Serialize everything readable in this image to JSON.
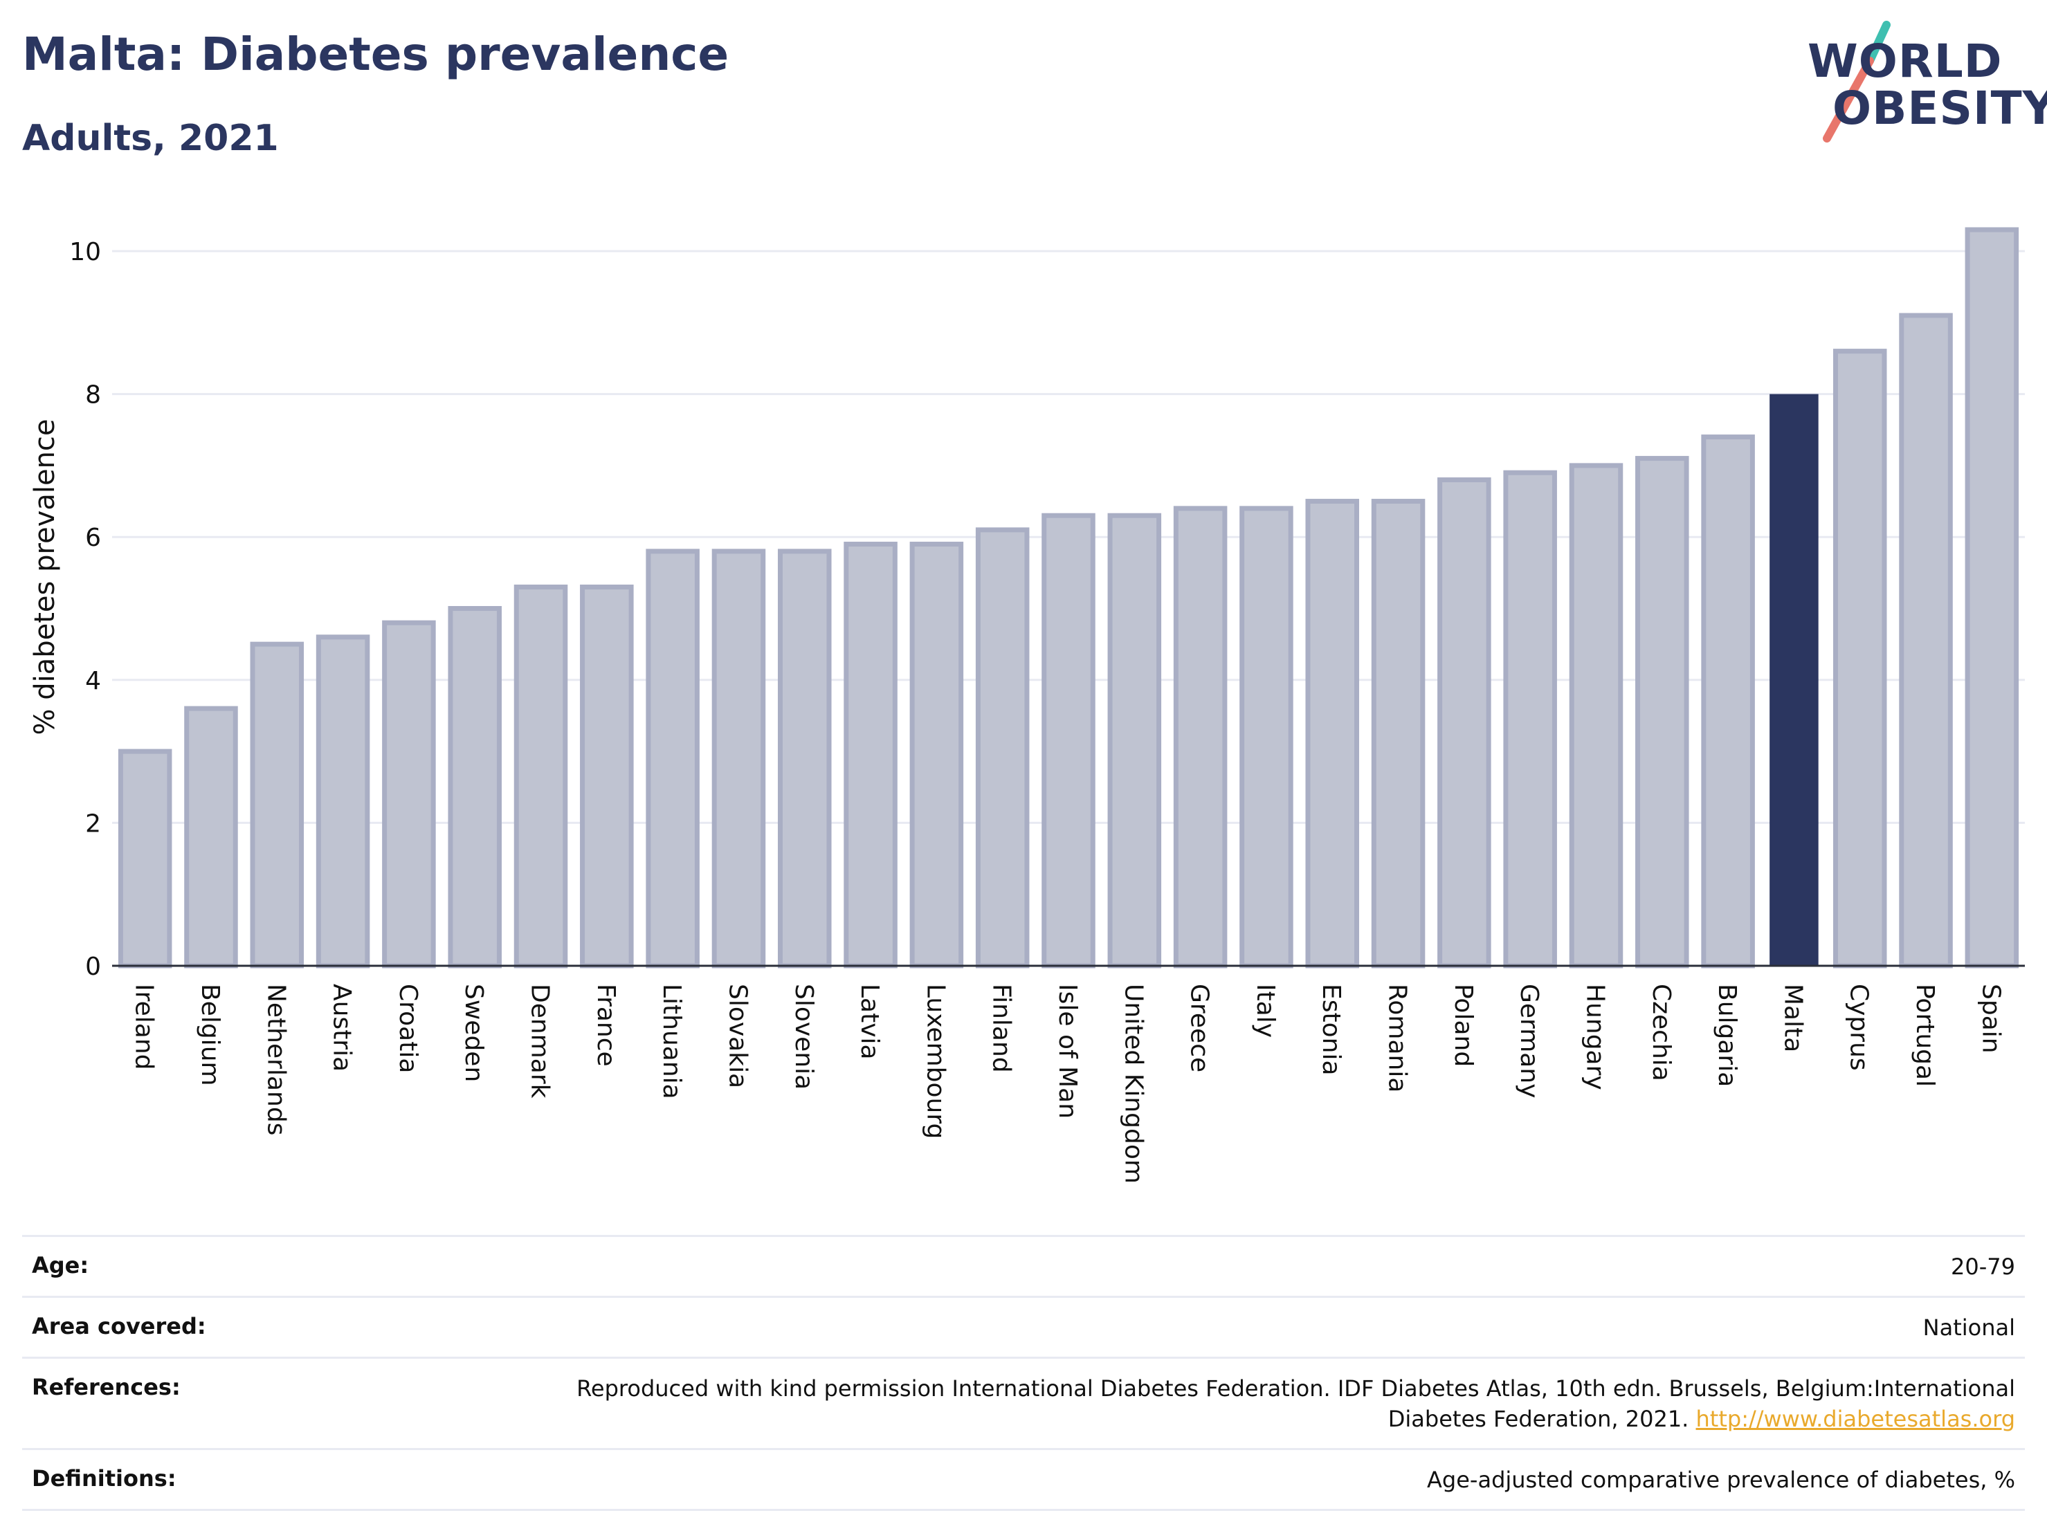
{
  "header": {
    "title": "Malta: Diabetes prevalence",
    "subtitle": "Adults, 2021"
  },
  "logo": {
    "line1": "WORLD",
    "line2": "OBESITY",
    "accent_teal": "#3fbfb0",
    "accent_coral": "#e8766b"
  },
  "colors": {
    "bar_default": "#bfc3d1",
    "bar_border": "#a9aec4",
    "bar_highlight": "#2b3660",
    "grid": "#e8eaf2"
  },
  "chart_data": {
    "type": "bar",
    "ylabel": "% diabetes prevalence",
    "ylim": [
      0,
      10.6
    ],
    "yticks": [
      0,
      2,
      4,
      6,
      8,
      10
    ],
    "highlight": "Malta",
    "categories": [
      "Ireland",
      "Belgium",
      "Netherlands",
      "Austria",
      "Croatia",
      "Sweden",
      "Denmark",
      "France",
      "Lithuania",
      "Slovakia",
      "Slovenia",
      "Latvia",
      "Luxembourg",
      "Finland",
      "Isle of Man",
      "United Kingdom",
      "Greece",
      "Italy",
      "Estonia",
      "Romania",
      "Poland",
      "Germany",
      "Hungary",
      "Czechia",
      "Bulgaria",
      "Malta",
      "Cyprus",
      "Portugal",
      "Spain"
    ],
    "values": [
      3.0,
      3.6,
      4.5,
      4.6,
      4.8,
      5.0,
      5.3,
      5.3,
      5.8,
      5.8,
      5.8,
      5.9,
      5.9,
      6.1,
      6.3,
      6.3,
      6.4,
      6.4,
      6.5,
      6.5,
      6.8,
      6.9,
      7.0,
      7.1,
      7.4,
      8.0,
      8.6,
      9.1,
      10.3
    ],
    "grid": true
  },
  "meta": {
    "age": {
      "label": "Age:",
      "value": "20-79"
    },
    "area": {
      "label": "Area covered:",
      "value": "National"
    },
    "references": {
      "label": "References:",
      "text": "Reproduced with kind permission International Diabetes Federation.  IDF Diabetes Atlas, 10th edn. Brussels, Belgium:International Diabetes Federation, 2021.",
      "link": "http://www.diabetesatlas.org"
    },
    "definitions": {
      "label": "Definitions:",
      "value": "Age-adjusted comparative prevalence of diabetes, %"
    }
  }
}
